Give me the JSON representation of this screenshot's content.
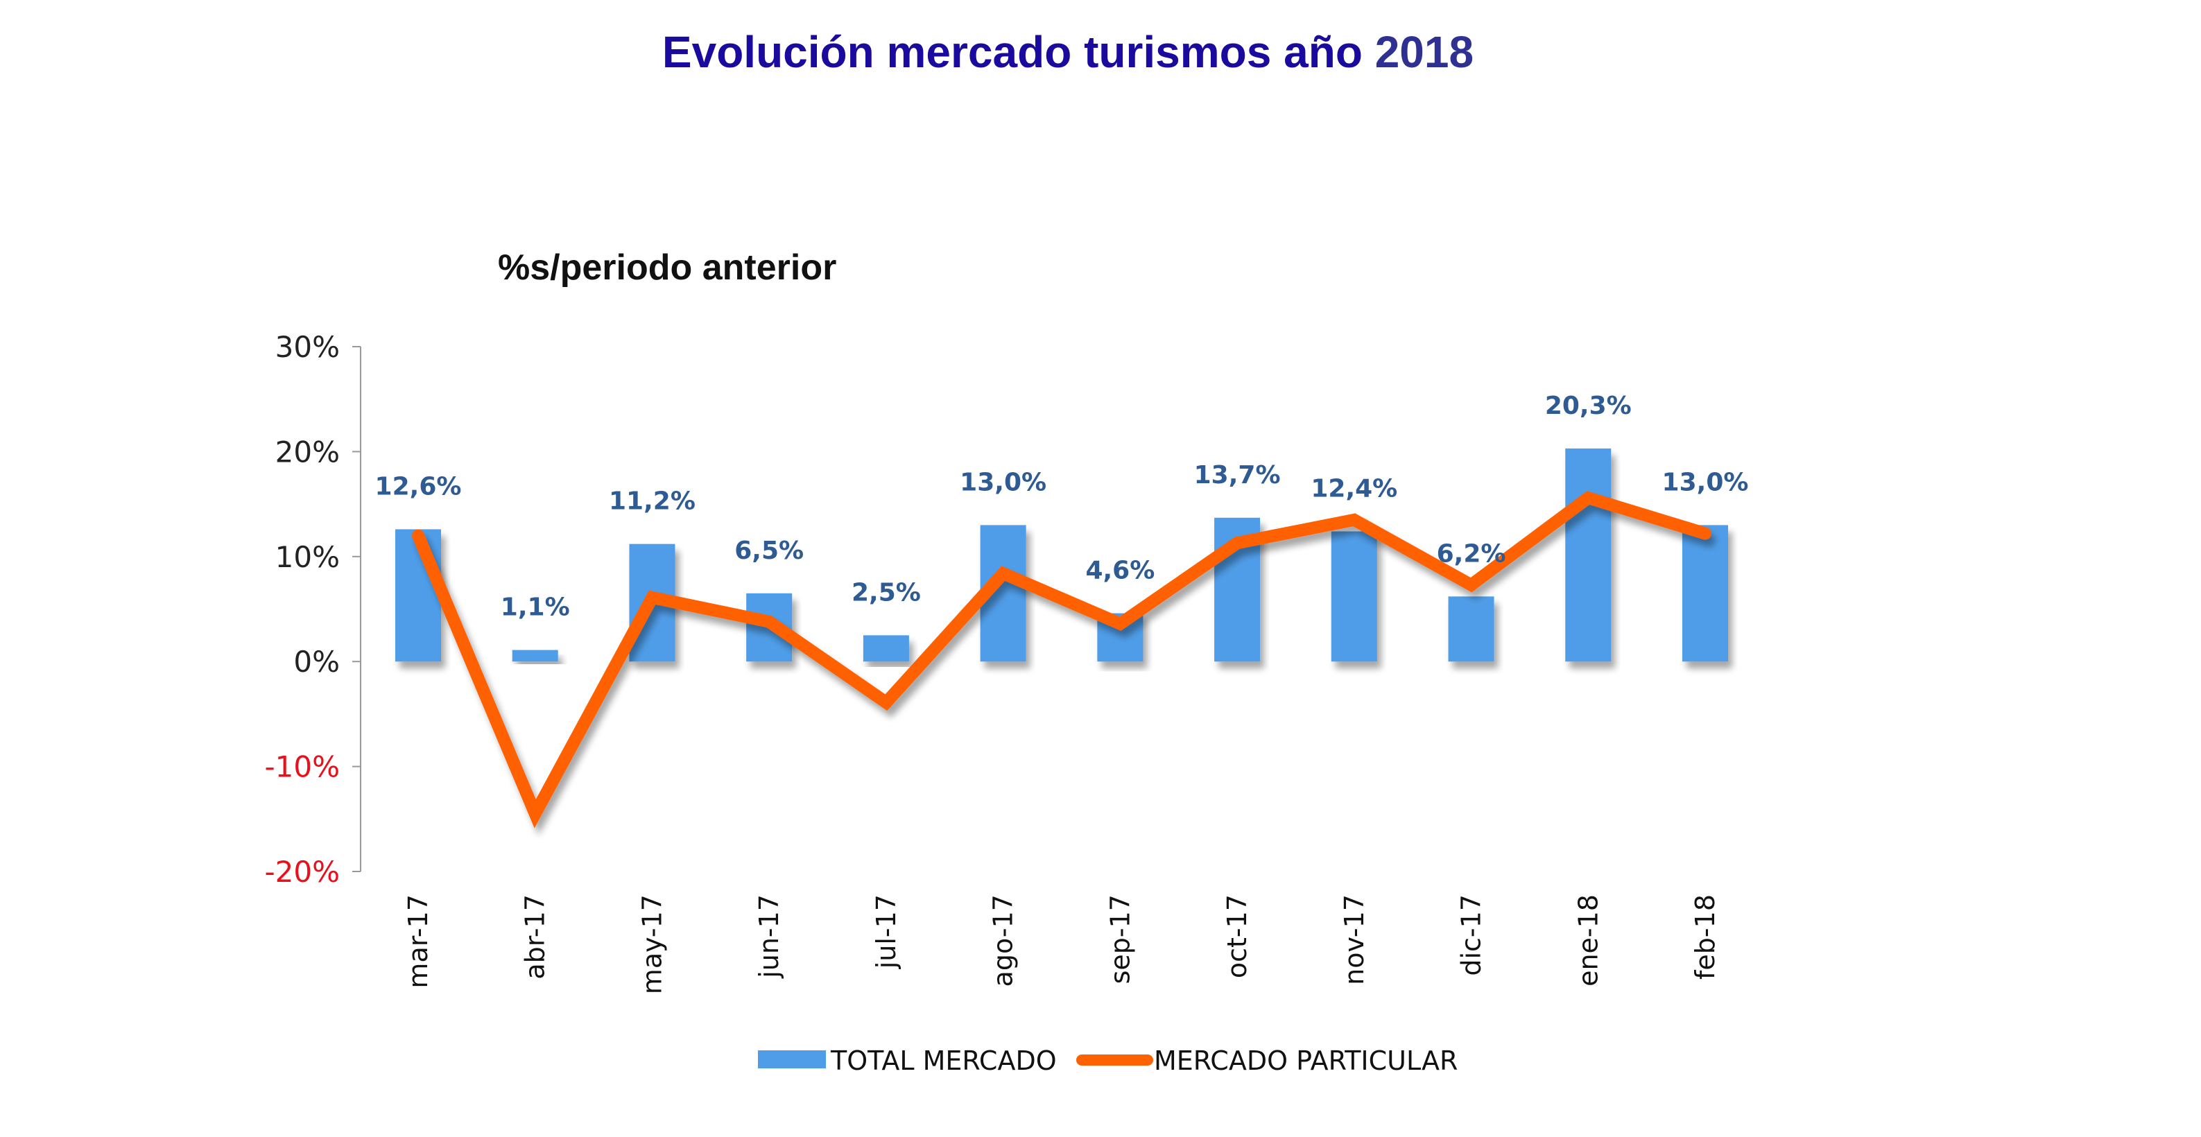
{
  "title_main": "Evolución mercado turismos año",
  "title_year": "2018",
  "chart_data": {
    "type": "bar+line",
    "title": "Evolución mercado turismos año 2018",
    "subtitle": "%s/periodo anterior",
    "categories": [
      "mar-17",
      "abr-17",
      "may-17",
      "jun-17",
      "jul-17",
      "ago-17",
      "sep-17",
      "oct-17",
      "nov-17",
      "dic-17",
      "ene-18",
      "feb-18"
    ],
    "series": [
      {
        "name": "TOTAL MERCADO",
        "type": "bar",
        "color": "#4f9de8",
        "values": [
          12.6,
          1.1,
          11.2,
          6.5,
          2.5,
          13.0,
          4.6,
          13.7,
          12.4,
          6.2,
          20.3,
          13.0
        ],
        "labels": [
          "12,6%",
          "1,1%",
          "11,2%",
          "6,5%",
          "2,5%",
          "13,0%",
          "4,6%",
          "13,7%",
          "12,4%",
          "6,2%",
          "20,3%",
          "13,0%"
        ]
      },
      {
        "name": "MERCADO PARTICULAR",
        "type": "line",
        "color": "#ff6000",
        "values": [
          12.0,
          -14.5,
          6.1,
          3.8,
          -3.9,
          8.4,
          3.6,
          11.3,
          13.5,
          7.3,
          15.6,
          12.2
        ]
      }
    ],
    "yticks": [
      {
        "value": 30,
        "label": "30%"
      },
      {
        "value": 20,
        "label": "20%"
      },
      {
        "value": 10,
        "label": "10%"
      },
      {
        "value": 0,
        "label": "0%"
      },
      {
        "value": -10,
        "label": "-10%"
      },
      {
        "value": -20,
        "label": "-20%"
      }
    ],
    "negative_tick_color": "#e8101a",
    "ylim": [
      -20,
      30
    ],
    "grid": false,
    "legend_position": "bottom"
  }
}
